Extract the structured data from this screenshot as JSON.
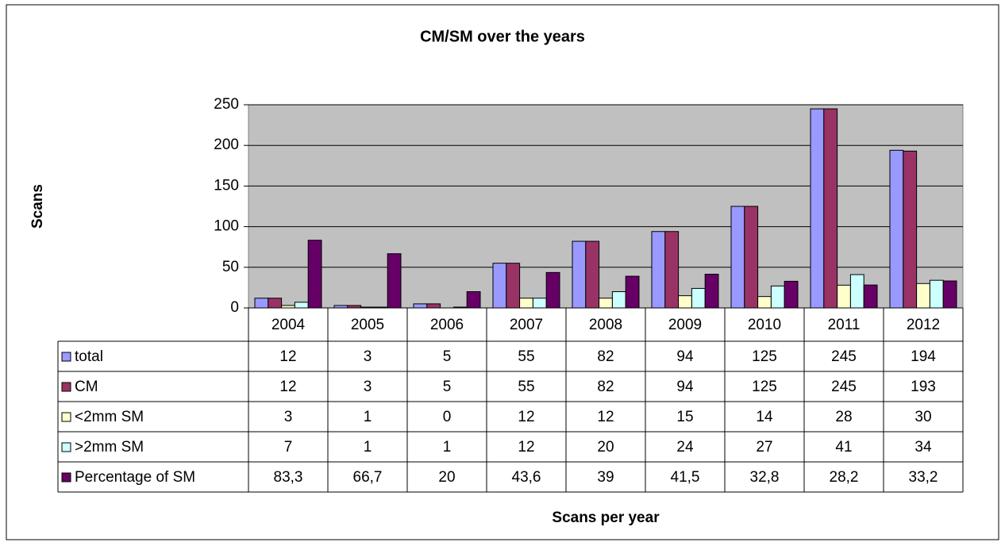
{
  "chart_data": {
    "type": "bar",
    "title": "CM/SM over the years",
    "ylabel": "Scans",
    "xlabel": "Scans per year",
    "categories": [
      "2004",
      "2005",
      "2006",
      "2007",
      "2008",
      "2009",
      "2010",
      "2011",
      "2012"
    ],
    "series": [
      {
        "name": "total",
        "color": "#9999ff",
        "values": [
          12,
          3,
          5,
          55,
          82,
          94,
          125,
          245,
          194
        ]
      },
      {
        "name": "CM",
        "color": "#993366",
        "values": [
          12,
          3,
          5,
          55,
          82,
          94,
          125,
          245,
          193
        ]
      },
      {
        "name": "<2mm SM",
        "color": "#ffffcc",
        "values": [
          3,
          1,
          0,
          12,
          12,
          15,
          14,
          28,
          30
        ]
      },
      {
        "name": ">2mm SM",
        "color": "#ccffff",
        "values": [
          7,
          1,
          1,
          12,
          20,
          24,
          27,
          41,
          34
        ]
      },
      {
        "name": "Percentage of SM",
        "color": "#660066",
        "values": [
          83.3,
          66.7,
          20,
          43.6,
          39,
          41.5,
          32.8,
          28.2,
          33.2
        ],
        "value_labels": [
          "83,3",
          "66,7",
          "20",
          "43,6",
          "39",
          "41,5",
          "32,8",
          "28,2",
          "33,2"
        ]
      }
    ],
    "ylim": [
      0,
      250
    ],
    "yticks": [
      0,
      50,
      100,
      150,
      200,
      250
    ],
    "grid": true,
    "plot_background": "#c0c0c0"
  }
}
